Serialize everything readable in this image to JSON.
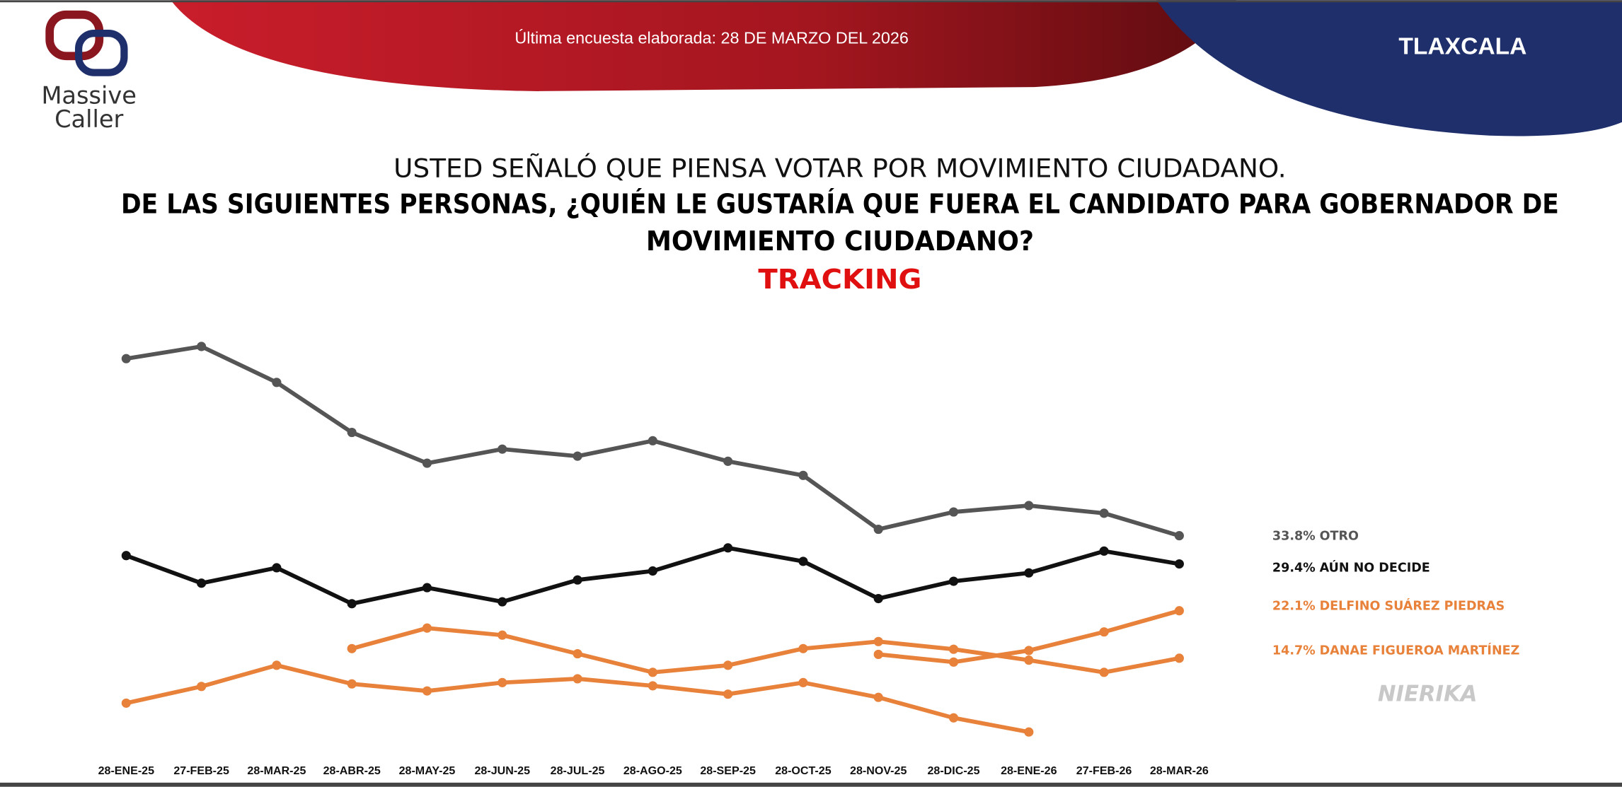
{
  "header": {
    "survey_date": "Última encuesta elaborada: 28 DE MARZO DEL 2026",
    "state": "TLAXCALA",
    "logo_line1": "Massive",
    "logo_line2": "Caller",
    "watermark": "NIERIKA"
  },
  "chart_data": {
    "type": "line",
    "subtitle": "USTED SEÑALÓ QUE PIENSA VOTAR POR MOVIMIENTO CIUDADANO.",
    "title": [
      "DE LAS SIGUIENTES PERSONAS, ¿QUIÉN LE GUSTARÍA QUE FUERA EL CANDIDATO PARA GOBERNADOR DE",
      "MOVIMIENTO CIUDADANO?"
    ],
    "label": "TRACKING",
    "categories": [
      "28-ENE-25",
      "27-FEB-25",
      "28-MAR-25",
      "28-ABR-25",
      "28-MAY-25",
      "28-JUN-25",
      "28-JUL-25",
      "28-AGO-25",
      "28-SEP-25",
      "28-OCT-25",
      "28-NOV-25",
      "28-DIC-25",
      "28-ENE-26",
      "27-FEB-26",
      "28-MAR-26"
    ],
    "series": [
      {
        "name": "OTRO",
        "color": "#555555",
        "values": [
          61.4,
          63.3,
          57.7,
          49.9,
          45.1,
          47.3,
          46.2,
          48.6,
          45.4,
          43.2,
          34.8,
          37.5,
          38.5,
          37.3,
          33.8
        ],
        "value_labels": [
          null,
          null,
          null,
          null,
          null,
          null,
          null,
          null,
          null,
          null,
          null,
          null,
          null,
          null,
          "33.8%"
        ]
      },
      {
        "name": "AÚN NO DECIDE",
        "color": "#111111",
        "values": [
          30.7,
          26.4,
          28.8,
          23.2,
          25.7,
          23.5,
          26.9,
          28.3,
          31.9,
          29.8,
          24.0,
          26.7,
          28.0,
          31.4,
          29.4
        ],
        "value_labels": [
          null,
          null,
          null,
          null,
          null,
          null,
          null,
          null,
          null,
          null,
          null,
          null,
          null,
          null,
          "29.4%"
        ]
      },
      {
        "name": "DELFINO SUÁREZ PIEDRAS",
        "color": "#e8813a",
        "values": [
          null,
          null,
          null,
          null,
          null,
          null,
          null,
          null,
          null,
          null,
          15.3,
          14.1,
          15.9,
          18.8,
          22.1
        ],
        "value_labels": [
          null,
          null,
          null,
          null,
          null,
          null,
          null,
          null,
          null,
          null,
          null,
          null,
          null,
          null,
          "22.1%"
        ]
      },
      {
        "name": "DANAE FIGUEROA MARTÍNEZ",
        "color": "#e8813a",
        "values": [
          null,
          null,
          null,
          16.2,
          19.4,
          18.3,
          15.4,
          12.5,
          13.6,
          16.2,
          17.3,
          16.1,
          14.4,
          12.5,
          14.7
        ],
        "value_labels": [
          null,
          null,
          null,
          null,
          null,
          null,
          null,
          null,
          null,
          null,
          null,
          null,
          null,
          null,
          "14.7%"
        ]
      },
      {
        "color": "#e8813a",
        "values": [
          7.7,
          10.3,
          13.6,
          10.7,
          9.6,
          10.9,
          11.5,
          10.4,
          9.1,
          10.9,
          8.6,
          5.4,
          3.2,
          null,
          null
        ]
      }
    ]
  }
}
